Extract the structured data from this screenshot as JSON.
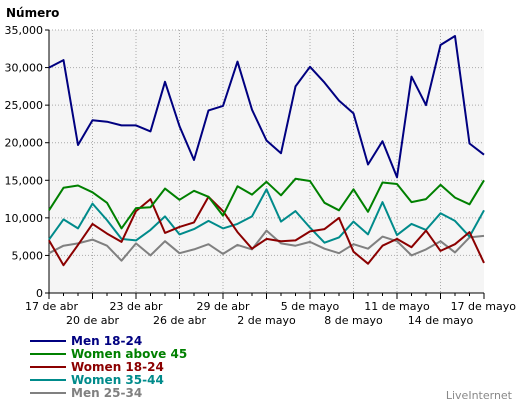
{
  "chart_data": {
    "type": "line",
    "ylabel": "Número",
    "ylim": [
      0,
      35000
    ],
    "y_ticks": [
      "0",
      "5,000",
      "10,000",
      "15,000",
      "20,000",
      "25,000",
      "30,000",
      "35,000"
    ],
    "x_ticks_top": [
      "17 de abr",
      "23 de abr",
      "29 de abr",
      "5 de mayo",
      "11 de mayo",
      "17 de mayo"
    ],
    "x_ticks_bottom": [
      "20 de abr",
      "26 de abr",
      "2 de mayo",
      "8 de mayo",
      "14 de mayo"
    ],
    "grid": true,
    "legend_position": "bottom-left",
    "series": [
      {
        "name": "Men 18-24",
        "color": "#000080",
        "values": [
          30000,
          31000,
          19700,
          23000,
          22800,
          22300,
          22300,
          21500,
          28100,
          22200,
          17700,
          24300,
          24900,
          30800,
          24400,
          20300,
          18600,
          27500,
          30100,
          28000,
          25600,
          23900,
          17100,
          20200,
          15400,
          28800,
          25000,
          33000,
          34200,
          19900,
          18400
        ]
      },
      {
        "name": "Women above 45",
        "color": "#008000",
        "values": [
          11000,
          14000,
          14300,
          13400,
          12000,
          8600,
          11300,
          11400,
          13900,
          12400,
          13600,
          12800,
          10300,
          14200,
          13100,
          14800,
          13000,
          15200,
          14900,
          12000,
          11000,
          13800,
          10800,
          14700,
          14500,
          12100,
          12500,
          14400,
          12700,
          11800,
          15000
        ]
      },
      {
        "name": "Women 18-24",
        "color": "#8b0000",
        "values": [
          7000,
          3700,
          6400,
          9200,
          7900,
          6800,
          10900,
          12500,
          8000,
          8800,
          9400,
          12800,
          10900,
          8100,
          5900,
          7200,
          6900,
          7000,
          8200,
          8500,
          10000,
          5500,
          3900,
          6300,
          7200,
          6100,
          8300,
          5600,
          6500,
          8100,
          4000
        ]
      },
      {
        "name": "Women 35-44",
        "color": "#008b8b",
        "values": [
          7100,
          9800,
          8600,
          11900,
          9700,
          7200,
          7000,
          8400,
          10200,
          7800,
          8500,
          9600,
          8600,
          9200,
          10200,
          13800,
          9500,
          10900,
          8700,
          6700,
          7400,
          9500,
          7800,
          12100,
          7700,
          9200,
          8400,
          10600,
          9600,
          7500,
          11000
        ]
      },
      {
        "name": "Men 25-34",
        "color": "#808080",
        "values": [
          5300,
          6300,
          6600,
          7100,
          6300,
          4300,
          6600,
          5000,
          6900,
          5300,
          5800,
          6500,
          5200,
          6400,
          5800,
          8300,
          6600,
          6300,
          6800,
          5900,
          5300,
          6500,
          5900,
          7500,
          6900,
          5000,
          5800,
          6900,
          5400,
          7400,
          7600
        ]
      }
    ]
  },
  "credit": "LiveInternet"
}
